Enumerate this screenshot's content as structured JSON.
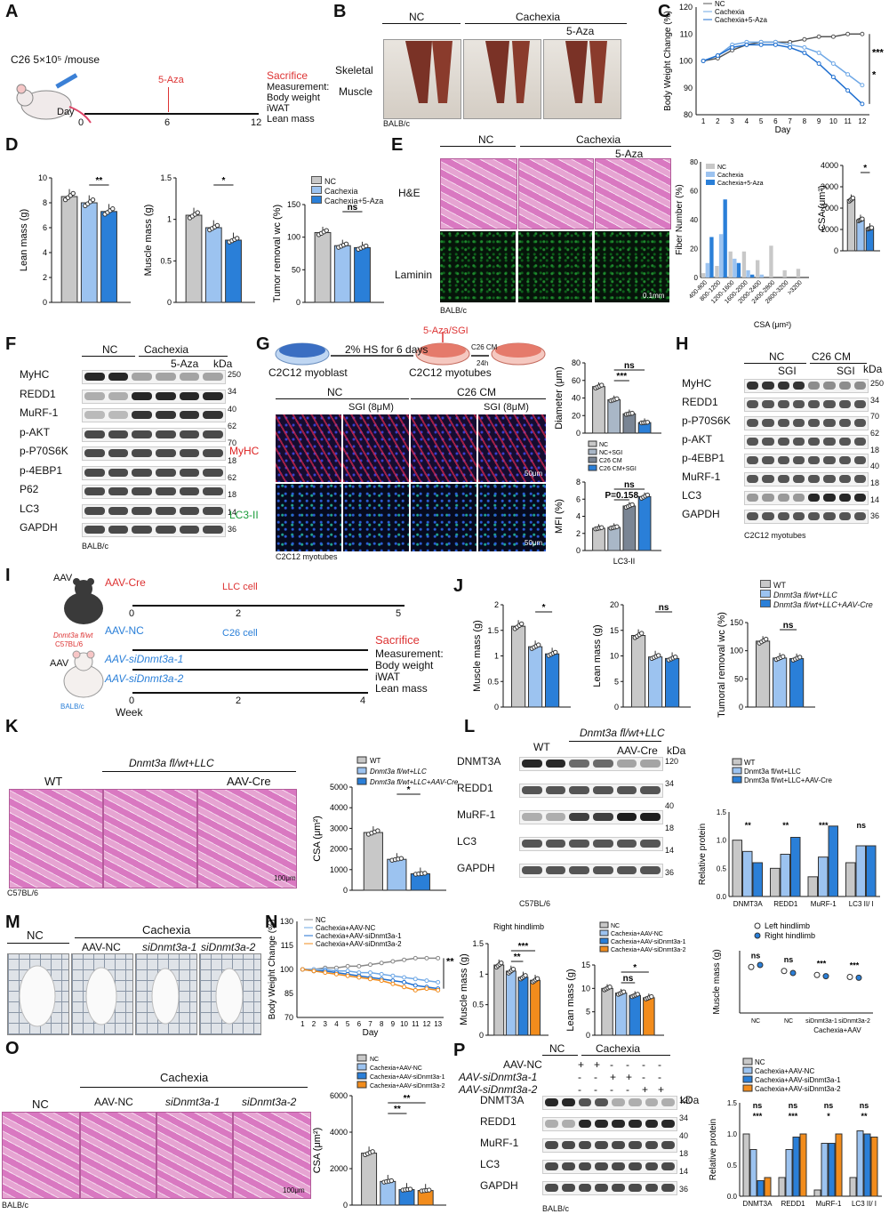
{
  "panels": [
    "A",
    "B",
    "C",
    "D",
    "E",
    "F",
    "G",
    "H",
    "I",
    "J",
    "K",
    "L",
    "M",
    "N",
    "O",
    "P"
  ],
  "A": {
    "dose": "C26 5×10⁵ /mouse",
    "day_label": "Day",
    "days": [
      "0",
      "6",
      "12"
    ],
    "treat": "5-Aza",
    "sacrifice": "Sacrifice",
    "measurement": [
      "Measurement:",
      "Body weight",
      "iWAT",
      "Lean mass"
    ]
  },
  "B": {
    "groups": [
      "NC",
      "Cachexia"
    ],
    "sub": "5-Aza",
    "row": [
      "Skeletal",
      "Muscle"
    ],
    "strain": "BALB/c"
  },
  "C": {
    "legend": [
      "NC",
      "Cachexia",
      "Cachexia+5-Aza"
    ],
    "ylabel": "Body Weight Change (%)",
    "xlabel": "Day",
    "sig": [
      "***",
      "*"
    ]
  },
  "D": {
    "charts": [
      {
        "ylabel": "Lean mass (g)",
        "sig": "**"
      },
      {
        "ylabel": "Muscle mass (g)",
        "sig": "*"
      },
      {
        "ylabel": "Tumor removal wc (%)",
        "sig": "ns"
      }
    ],
    "legend": [
      "NC",
      "Cachexia",
      "Cachexia+5-Aza"
    ]
  },
  "E": {
    "groups": [
      "NC",
      "Cachexia"
    ],
    "sub": "5-Aza",
    "rows": [
      "H&E",
      "Laminin"
    ],
    "strain": "BALB/c",
    "scale": "0.1mm",
    "hist_ylabel": "Fiber Number (%)",
    "hist_xlabel": "CSA (μm²)",
    "csa_ylabel": "CSA (μm²)",
    "csa_sig": "*",
    "legend": [
      "NC",
      "Cachexia",
      "Cachexia+5-Aza"
    ]
  },
  "F": {
    "groups": [
      "NC",
      "Cachexia"
    ],
    "sub": "5-Aza",
    "kda": "kDa",
    "proteins": [
      "MyHC",
      "REDD1",
      "MuRF-1",
      "p-AKT",
      "p-P70S6K",
      "p-4EBP1",
      "P62",
      "LC3",
      "GAPDH"
    ],
    "sizes": [
      "250",
      "34",
      "40",
      "62",
      "70",
      "18",
      "62",
      "18",
      "14",
      "36"
    ],
    "strain": "BALB/c"
  },
  "G": {
    "top": [
      "2% HS for 6 days",
      "C26 CM",
      "24h"
    ],
    "cells": [
      "C2C12 myoblast",
      "C2C12 myotubes"
    ],
    "treat": "5-Aza/SGI",
    "cols": [
      "NC",
      "SGI (8μM)",
      "C26 CM",
      "SGI (8μM)"
    ],
    "rows": [
      "MyHC",
      "LC3-II"
    ],
    "footer": "C2C12 myotubes",
    "scale": "50μm",
    "diam_ylabel": "Diameter (μm)",
    "diam_sig": [
      "ns",
      "***"
    ],
    "mfi_ylabel": "MFI (%)",
    "mfi_xlabel": "LC3-II",
    "mfi_sig": [
      "ns",
      "P=0.158"
    ],
    "legend": [
      "NC",
      "NC+SGI",
      "C26 CM",
      "C26 CM+SGI"
    ]
  },
  "H": {
    "groups": [
      "NC",
      "C26 CM"
    ],
    "subs": [
      "SGI",
      "SGI"
    ],
    "kda": "kDa",
    "proteins": [
      "MyHC",
      "REDD1",
      "p-P70S6K",
      "p-AKT",
      "p-4EBP1",
      "MuRF-1",
      "LC3",
      "GAPDH"
    ],
    "sizes": [
      "250",
      "34",
      "70",
      "62",
      "18",
      "40",
      "18",
      "14",
      "36"
    ],
    "footer": "C2C12 myotubes"
  },
  "I": {
    "aav": "AAV",
    "cre": "AAV-Cre",
    "llc": "LLC cell",
    "geno": "Dnmt3a fl/wt",
    "strain1": "C57BL/6",
    "nc": "AAV-NC",
    "c26": "C26 cell",
    "si1": "AAV-siDnmt3a-1",
    "si2": "AAV-siDnmt3a-2",
    "strain2": "BALB/c",
    "week": "Week",
    "ticks1": [
      "0",
      "2",
      "5"
    ],
    "ticks2": [
      "0",
      "2",
      "4"
    ],
    "sacrifice": "Sacrifice",
    "measurement": [
      "Measurement:",
      "Body weight",
      "iWAT",
      "Lean mass"
    ]
  },
  "J": {
    "charts": [
      {
        "ylabel": "Muscle mass (g)",
        "sig": "*"
      },
      {
        "ylabel": "Lean mass (g)",
        "sig": "ns"
      },
      {
        "ylabel": "Tumoral removal wc (%)",
        "sig": "ns"
      }
    ],
    "legend": [
      "WT",
      "Dnmt3a fl/wt+LLC",
      "Dnmt3a fl/wt+LLC+AAV-Cre"
    ]
  },
  "K": {
    "cols": [
      "WT",
      "Dnmt3a fl/wt+LLC",
      "AAV-Cre"
    ],
    "strain": "C57BL/6",
    "scale": "100μm",
    "ylabel": "CSA (μm²)",
    "sig": "*",
    "legend": [
      "WT",
      "Dnmt3a fl/wt+LLC",
      "Dnmt3a fl/wt+LLC+AAV-Cre"
    ]
  },
  "L": {
    "groups": [
      "WT",
      "Dnmt3a fl/wt+LLC"
    ],
    "sub": "AAV-Cre",
    "kda": "kDa",
    "proteins": [
      "DNMT3A",
      "REDD1",
      "MuRF-1",
      "LC3",
      "GAPDH"
    ],
    "sizes": [
      "120",
      "34",
      "40",
      "18",
      "14",
      "36"
    ],
    "strain": "C57BL/6",
    "ylabel": "Relative protein",
    "xcats": [
      "DNMT3A",
      "REDD1",
      "MuRF-1",
      "LC3 II/ I"
    ],
    "sig": [
      "**",
      "**",
      "***",
      "ns"
    ],
    "legend": [
      "WT",
      "Dnmt3a fl/wt+LLC",
      "Dnmt3a fl/wt+LLC+AAV-Cre"
    ]
  },
  "M": {
    "groups": [
      "NC",
      "Cachexia"
    ],
    "subs": [
      "AAV-NC",
      "siDnmt3a-1",
      "siDnmt3a-2"
    ]
  },
  "N": {
    "legend": [
      "NC",
      "Cachexia+AAV-NC",
      "Cachexia+AAV-siDnmt3a-1",
      "Cachexia+AAV-siDnmt3a-2"
    ],
    "ylabel": "Body Weight Change (%)",
    "xlabel": "Day",
    "sig": "**",
    "rh_title": "Right hindlimb",
    "rh_ylabel": "Muscle mass (g)",
    "rh_sig": [
      "***",
      "**"
    ],
    "lean_ylabel": "Lean mass (g)",
    "lean_sig": [
      "*",
      "ns"
    ],
    "mm_ylabel": "Muscle mass (g)",
    "mm_legend": [
      "Left hindlimb",
      "Right hindlimb"
    ],
    "mm_x": [
      "NC",
      "NC",
      "siDnmt3a-1",
      "siDnmt3a-2"
    ],
    "mm_group": "Cachexia+AAV",
    "mm_sig": [
      "ns",
      "ns",
      "***",
      "***"
    ]
  },
  "O": {
    "groups": [
      "NC",
      "Cachexia"
    ],
    "subs": [
      "AAV-NC",
      "siDnmt3a-1",
      "siDnmt3a-2"
    ],
    "strain": "BALB/c",
    "scale": "100μm",
    "ylabel": "CSA (μm²)",
    "sig": [
      "**",
      "**"
    ],
    "legend": [
      "NC",
      "Cachexia+AAV-NC",
      "Cachexia+AAV-siDnmt3a-1",
      "Cachexia+AAV-siDnmt3a-2"
    ]
  },
  "P": {
    "groups": [
      "NC",
      "Cachexia"
    ],
    "rows": [
      "AAV-NC",
      "AAV-siDnmt3a-1",
      "AAV-siDnmt3a-2"
    ],
    "kda": "kDa",
    "signs": [
      [
        "+",
        "+",
        "-",
        "-",
        "-",
        "-"
      ],
      [
        "-",
        "-",
        "+",
        "+",
        "-",
        "-"
      ],
      [
        "-",
        "-",
        "-",
        "-",
        "+",
        "+"
      ]
    ],
    "proteins": [
      "DNMT3A",
      "REDD1",
      "MuRF-1",
      "LC3",
      "GAPDH"
    ],
    "sizes": [
      "120",
      "34",
      "40",
      "18",
      "14",
      "36"
    ],
    "strain": "BALB/c",
    "ylabel": "Relative protein",
    "xcats": [
      "DNMT3A",
      "REDD1",
      "MuRF-1",
      "LC3 II/ I"
    ],
    "sig": [
      "***",
      "***",
      "*",
      "**",
      "ns",
      "ns",
      "ns",
      "ns"
    ],
    "legend": [
      "NC",
      "Cachexia+AAV-NC",
      "Cachexia+AAV-siDnmt3a-1",
      "Cachexia+AAV-siDnmt3a-2"
    ]
  },
  "colors": {
    "nc": "#c8c8c8",
    "c1": "#9cc3f0",
    "c2": "#2a7fd8",
    "orange": "#f28c1c",
    "dark": "#555555"
  },
  "chart_data": [
    {
      "id": "C",
      "type": "line",
      "x": [
        1,
        2,
        3,
        4,
        5,
        6,
        7,
        8,
        9,
        10,
        11,
        12
      ],
      "ylim": [
        80,
        120
      ],
      "series": [
        {
          "name": "NC",
          "values": [
            100,
            101,
            104,
            106,
            107,
            107,
            107,
            108,
            109,
            109,
            110,
            110
          ]
        },
        {
          "name": "Cachexia",
          "values": [
            100,
            102,
            106,
            107,
            107,
            107,
            106,
            105,
            103,
            99,
            95,
            91
          ]
        },
        {
          "name": "Cachexia+5-Aza",
          "values": [
            100,
            102,
            105,
            106,
            106,
            106,
            105,
            103,
            99,
            94,
            89,
            84
          ]
        }
      ]
    },
    {
      "id": "D1",
      "type": "bar",
      "categories": [
        "NC",
        "Cachexia",
        "Cachexia+5-Aza"
      ],
      "values": [
        8.5,
        8.0,
        7.3
      ],
      "ylim": [
        0,
        10
      ]
    },
    {
      "id": "D2",
      "type": "bar",
      "categories": [
        "NC",
        "Cachexia",
        "Cachexia+5-Aza"
      ],
      "values": [
        1.05,
        0.9,
        0.75
      ],
      "ylim": [
        0,
        1.5
      ]
    },
    {
      "id": "D3",
      "type": "bar",
      "categories": [
        "NC",
        "Cachexia",
        "Cachexia+5-Aza"
      ],
      "values": [
        107,
        87,
        84
      ],
      "ylim": [
        0,
        150
      ]
    },
    {
      "id": "E_hist",
      "type": "bar",
      "categories": [
        "400-800",
        "800-1200",
        "1200-1600",
        "1600-2000",
        "2000-2400",
        "2400-2800",
        "2800-3200",
        ">3200"
      ],
      "ylim": [
        0,
        80
      ],
      "series": [
        {
          "name": "NC",
          "values": [
            3,
            8,
            18,
            18,
            12,
            22,
            5,
            6
          ]
        },
        {
          "name": "Cachexia",
          "values": [
            10,
            30,
            13,
            5,
            2,
            0,
            0,
            0
          ]
        },
        {
          "name": "Cachexia+5-Aza",
          "values": [
            28,
            54,
            10,
            2,
            0,
            0,
            0,
            0
          ]
        }
      ]
    },
    {
      "id": "E_csa",
      "type": "bar",
      "categories": [
        "NC",
        "Cachexia",
        "Cachexia+5-Aza"
      ],
      "values": [
        2400,
        1450,
        1050
      ],
      "ylim": [
        0,
        4000
      ]
    },
    {
      "id": "G_diam",
      "type": "bar",
      "categories": [
        "NC",
        "NC+SGI",
        "C26 CM",
        "C26 CM+SGI"
      ],
      "values": [
        53,
        38,
        22,
        12
      ],
      "ylim": [
        0,
        80
      ]
    },
    {
      "id": "G_mfi",
      "type": "bar",
      "categories": [
        "NC",
        "NC+SGI",
        "C26 CM",
        "C26 CM+SGI"
      ],
      "values": [
        2.6,
        2.7,
        5.2,
        6.3
      ],
      "ylim": [
        0,
        8
      ]
    },
    {
      "id": "J1",
      "type": "bar",
      "categories": [
        "WT",
        "Dnmt3a fl/wt+LLC",
        "Dnmt3a fl/wt+LLC+AAV-Cre"
      ],
      "values": [
        1.58,
        1.18,
        1.04
      ],
      "ylim": [
        0,
        2.0
      ]
    },
    {
      "id": "J2",
      "type": "bar",
      "categories": [
        "WT",
        "Dnmt3a fl/wt+LLC",
        "Dnmt3a fl/wt+LLC+AAV-Cre"
      ],
      "values": [
        14.0,
        9.8,
        9.5
      ],
      "ylim": [
        0,
        20
      ]
    },
    {
      "id": "J3",
      "type": "bar",
      "categories": [
        "WT",
        "Dnmt3a fl/wt+LLC",
        "Dnmt3a fl/wt+LLC+AAV-Cre"
      ],
      "values": [
        117,
        87,
        86
      ],
      "ylim": [
        0,
        150
      ]
    },
    {
      "id": "K",
      "type": "bar",
      "categories": [
        "WT",
        "Dnmt3a fl/wt+LLC",
        "Dnmt3a fl/wt+LLC+AAV-Cre"
      ],
      "values": [
        2800,
        1500,
        800
      ],
      "ylim": [
        0,
        5000
      ]
    },
    {
      "id": "L",
      "type": "bar",
      "categories": [
        "DNMT3A",
        "REDD1",
        "MuRF-1",
        "LC3 II/ I"
      ],
      "ylim": [
        0,
        1.5
      ],
      "series": [
        {
          "name": "WT",
          "values": [
            1.0,
            0.5,
            0.35,
            0.6
          ]
        },
        {
          "name": "Dnmt3a fl/wt+LLC",
          "values": [
            0.8,
            0.75,
            0.7,
            0.9
          ]
        },
        {
          "name": "Dnmt3a fl/wt+LLC+AAV-Cre",
          "values": [
            0.6,
            1.05,
            1.25,
            0.9
          ]
        }
      ]
    },
    {
      "id": "N_bw",
      "type": "line",
      "x": [
        1,
        2,
        3,
        4,
        5,
        6,
        7,
        8,
        9,
        10,
        11,
        12,
        13
      ],
      "ylim": [
        70,
        130
      ],
      "series": [
        {
          "name": "NC",
          "values": [
            100,
            100,
            101,
            101,
            102,
            102,
            103,
            104,
            105,
            106,
            107,
            107,
            107
          ]
        },
        {
          "name": "Cachexia+AAV-NC",
          "values": [
            100,
            100,
            100,
            99,
            99,
            98,
            98,
            97,
            96,
            95,
            94,
            93,
            92
          ]
        },
        {
          "name": "Cachexia+AAV-siDnmt3a-1",
          "values": [
            100,
            99,
            99,
            98,
            97,
            96,
            95,
            94,
            93,
            92,
            90,
            89,
            88
          ]
        },
        {
          "name": "Cachexia+AAV-siDnmt3a-2",
          "values": [
            100,
            99,
            98,
            97,
            96,
            95,
            94,
            93,
            91,
            89,
            87,
            88,
            87
          ]
        }
      ]
    },
    {
      "id": "N_rh",
      "type": "bar",
      "categories": [
        "NC",
        "Cachexia+AAV-NC",
        "Cachexia+AAV-siDnmt3a-1",
        "Cachexia+AAV-siDnmt3a-2"
      ],
      "values": [
        1.15,
        1.05,
        0.95,
        0.9
      ],
      "ylim": [
        0,
        1.5
      ]
    },
    {
      "id": "N_lean",
      "type": "bar",
      "categories": [
        "NC",
        "Cachexia+AAV-NC",
        "Cachexia+AAV-siDnmt3a-1",
        "Cachexia+AAV-siDnmt3a-2"
      ],
      "values": [
        10,
        9,
        8.5,
        8
      ],
      "ylim": [
        0,
        15
      ]
    },
    {
      "id": "O",
      "type": "bar",
      "categories": [
        "NC",
        "Cachexia+AAV-NC",
        "Cachexia+AAV-siDnmt3a-1",
        "Cachexia+AAV-siDnmt3a-2"
      ],
      "values": [
        2850,
        1300,
        850,
        800
      ],
      "ylim": [
        0,
        6000
      ]
    },
    {
      "id": "P",
      "type": "bar",
      "categories": [
        "DNMT3A",
        "REDD1",
        "MuRF-1",
        "LC3 II/ I"
      ],
      "ylim": [
        0,
        1.5
      ],
      "series": [
        {
          "name": "NC",
          "values": [
            1.0,
            0.3,
            0.1,
            0.3
          ]
        },
        {
          "name": "Cachexia+AAV-NC",
          "values": [
            0.75,
            0.75,
            0.85,
            1.05
          ]
        },
        {
          "name": "Cachexia+AAV-siDnmt3a-1",
          "values": [
            0.25,
            0.95,
            0.85,
            1.0
          ]
        },
        {
          "name": "Cachexia+AAV-siDnmt3a-2",
          "values": [
            0.3,
            1.0,
            1.0,
            0.95
          ]
        }
      ]
    }
  ]
}
